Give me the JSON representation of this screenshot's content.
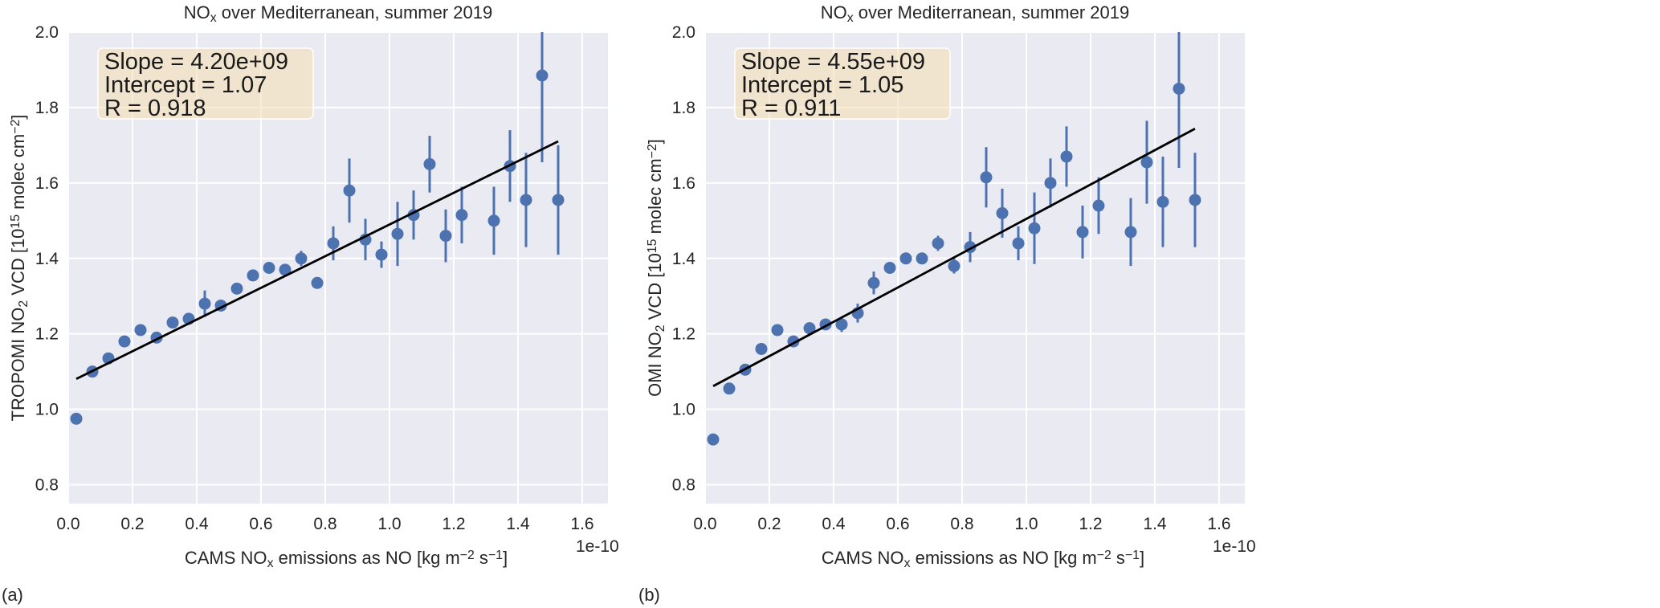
{
  "chart_data": [
    {
      "panel_label": "(a)",
      "type": "scatter",
      "title": {
        "pre": "NO",
        "sub": "x",
        "post": " over Mediterranean, summer 2019"
      },
      "xlabel": {
        "pre": "CAMS NO",
        "sub": "x",
        "mid": " emissions as NO [kg m",
        "sup1": "−2",
        "mid2": " s",
        "sup2": "−1",
        "post": "]"
      },
      "ylabel": {
        "pre": "TROPOMI NO",
        "sub": "2",
        "mid": " VCD [10",
        "sup1": "15",
        "mid2": " molec cm",
        "sup2": "−2",
        "post": "]"
      },
      "x_offset_label": "1e-10",
      "xlim": [
        0,
        1.68
      ],
      "ylim": [
        0.75,
        2.0
      ],
      "xticks": [
        "0.0",
        "0.2",
        "0.4",
        "0.6",
        "0.8",
        "1.0",
        "1.2",
        "1.4",
        "1.6"
      ],
      "yticks": [
        "0.8",
        "1.0",
        "1.2",
        "1.4",
        "1.6",
        "1.8",
        "2.0"
      ],
      "grid": true,
      "stats": [
        "Slope = 4.20e+09",
        "Intercept = 1.07",
        "R = 0.918"
      ],
      "fit": {
        "slope": 0.42,
        "intercept": 1.07,
        "x_range": [
          0.025,
          1.525
        ]
      },
      "points": {
        "x": [
          0.025,
          0.075,
          0.125,
          0.175,
          0.225,
          0.275,
          0.325,
          0.375,
          0.425,
          0.475,
          0.525,
          0.575,
          0.625,
          0.675,
          0.725,
          0.775,
          0.825,
          0.875,
          0.925,
          0.975,
          1.025,
          1.075,
          1.125,
          1.175,
          1.225,
          1.325,
          1.375,
          1.425,
          1.475,
          1.525
        ],
        "y": [
          0.975,
          1.1,
          1.135,
          1.18,
          1.21,
          1.19,
          1.23,
          1.24,
          1.28,
          1.275,
          1.32,
          1.355,
          1.375,
          1.37,
          1.4,
          1.335,
          1.44,
          1.58,
          1.45,
          1.41,
          1.465,
          1.515,
          1.65,
          1.46,
          1.515,
          1.5,
          1.645,
          1.555,
          1.885,
          1.555
        ],
        "err": [
          0.005,
          0.005,
          0.005,
          0.005,
          0.005,
          0.005,
          0.008,
          0.008,
          0.035,
          0.01,
          0.015,
          0.01,
          0.01,
          0.015,
          0.02,
          0.01,
          0.045,
          0.085,
          0.055,
          0.035,
          0.085,
          0.065,
          0.075,
          0.07,
          0.075,
          0.09,
          0.095,
          0.125,
          0.23,
          0.145
        ]
      },
      "colors": {
        "points": "#4c72b0",
        "fit": "#000000",
        "background": "#eaeaf2",
        "box": "#f5deb3"
      }
    },
    {
      "panel_label": "(b)",
      "type": "scatter",
      "title": {
        "pre": "NO",
        "sub": "x",
        "post": " over Mediterranean, summer 2019"
      },
      "xlabel": {
        "pre": "CAMS NO",
        "sub": "x",
        "mid": " emissions as NO [kg m",
        "sup1": "−2",
        "mid2": " s",
        "sup2": "−1",
        "post": "]"
      },
      "ylabel": {
        "pre": "OMI NO",
        "sub": "2",
        "mid": " VCD [10",
        "sup1": "15",
        "mid2": " molec cm",
        "sup2": "−2",
        "post": "]"
      },
      "x_offset_label": "1e-10",
      "xlim": [
        0,
        1.68
      ],
      "ylim": [
        0.75,
        2.0
      ],
      "xticks": [
        "0.0",
        "0.2",
        "0.4",
        "0.6",
        "0.8",
        "1.0",
        "1.2",
        "1.4",
        "1.6"
      ],
      "yticks": [
        "0.8",
        "1.0",
        "1.2",
        "1.4",
        "1.6",
        "1.8",
        "2.0"
      ],
      "grid": true,
      "stats": [
        "Slope = 4.55e+09",
        "Intercept = 1.05",
        "R = 0.911"
      ],
      "fit": {
        "slope": 0.455,
        "intercept": 1.05,
        "x_range": [
          0.025,
          1.525
        ]
      },
      "points": {
        "x": [
          0.025,
          0.075,
          0.125,
          0.175,
          0.225,
          0.275,
          0.325,
          0.375,
          0.425,
          0.475,
          0.525,
          0.575,
          0.625,
          0.675,
          0.725,
          0.775,
          0.825,
          0.875,
          0.925,
          0.975,
          1.025,
          1.075,
          1.125,
          1.175,
          1.225,
          1.325,
          1.375,
          1.425,
          1.475,
          1.525
        ],
        "y": [
          0.92,
          1.055,
          1.105,
          1.16,
          1.21,
          1.18,
          1.215,
          1.225,
          1.225,
          1.255,
          1.335,
          1.375,
          1.4,
          1.4,
          1.44,
          1.38,
          1.43,
          1.615,
          1.52,
          1.44,
          1.48,
          1.6,
          1.67,
          1.47,
          1.54,
          1.47,
          1.655,
          1.55,
          1.85,
          1.555
        ],
        "err": [
          0.005,
          0.005,
          0.005,
          0.005,
          0.005,
          0.005,
          0.008,
          0.008,
          0.02,
          0.025,
          0.03,
          0.015,
          0.015,
          0.015,
          0.02,
          0.02,
          0.04,
          0.08,
          0.065,
          0.045,
          0.095,
          0.065,
          0.08,
          0.07,
          0.075,
          0.09,
          0.11,
          0.12,
          0.21,
          0.125
        ]
      },
      "colors": {
        "points": "#4c72b0",
        "fit": "#000000",
        "background": "#eaeaf2",
        "box": "#f5deb3"
      }
    }
  ]
}
